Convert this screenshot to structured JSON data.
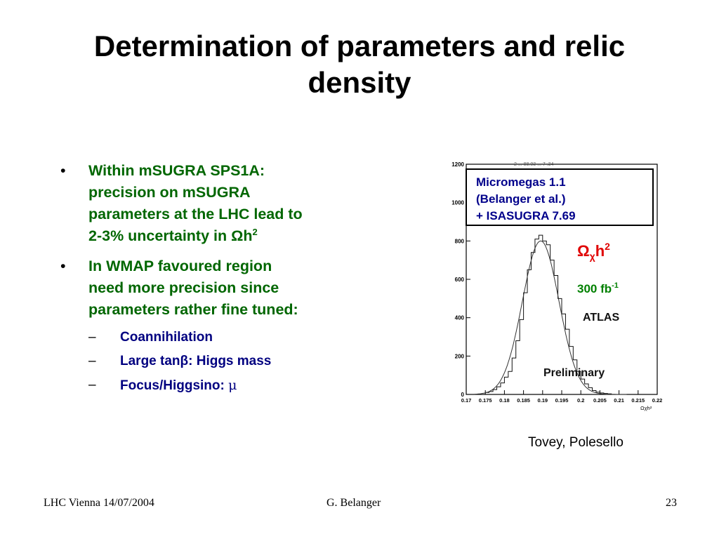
{
  "slide": {
    "title_line1": "Determination of parameters and relic",
    "title_line2": "density"
  },
  "bullets": {
    "b1": {
      "line1": "Within mSUGRA SPS1A:",
      "line2": "precision on mSUGRA",
      "line3": "parameters at the LHC lead to",
      "line4": "2-3% uncertainty in Ωh",
      "sup": "2"
    },
    "b2": {
      "line1": "In WMAP favoured region",
      "line2": "need more precision since",
      "line3": "parameters rather fine tuned:"
    },
    "sub": [
      {
        "text": "Coannihilation"
      },
      {
        "text": "Large tanβ: Higgs mass"
      },
      {
        "text": "Focus/Higgsino: ",
        "symbol": "μ"
      }
    ],
    "bullet_glyph": "•",
    "dash_glyph": "–"
  },
  "credit": "Tovey, Polesello",
  "footer": {
    "left": "LHC Vienna 14/07/2004",
    "center": "G. Belanger",
    "right": "23"
  },
  "chart_data": {
    "type": "bar",
    "legend_box": [
      "Micromegas 1.1",
      "(Belanger et al.)",
      "+ ISASUGRA 7.69"
    ],
    "quantity_label": "Ω",
    "quantity_sub": "χ",
    "quantity_suffix": "h",
    "quantity_sup": "2",
    "luminosity_label": "300 fb",
    "luminosity_sup": "-1",
    "experiment": "ATLAS",
    "status": "Preliminary",
    "xlabel": "Ωχh²",
    "xticks": [
      "0.17",
      "0.175",
      "0.18",
      "0.185",
      "0.19",
      "0.195",
      "0.2",
      "0.205",
      "0.21",
      "0.215",
      "0.22"
    ],
    "yticks": [
      "0",
      "200",
      "400",
      "600",
      "800",
      "1000",
      "1200"
    ],
    "xlim": [
      0.17,
      0.22
    ],
    "ylim": [
      0,
      1200
    ],
    "bin_width": 0.001,
    "histogram": {
      "x": [
        0.175,
        0.176,
        0.177,
        0.178,
        0.179,
        0.18,
        0.181,
        0.182,
        0.183,
        0.184,
        0.185,
        0.186,
        0.187,
        0.188,
        0.189,
        0.19,
        0.191,
        0.192,
        0.193,
        0.194,
        0.195,
        0.196,
        0.197,
        0.198,
        0.199,
        0.2,
        0.201,
        0.202,
        0.203,
        0.204,
        0.205,
        0.206,
        0.207
      ],
      "values": [
        10,
        15,
        25,
        40,
        60,
        90,
        120,
        190,
        280,
        390,
        530,
        650,
        740,
        810,
        830,
        800,
        780,
        700,
        620,
        500,
        420,
        340,
        250,
        180,
        120,
        80,
        55,
        35,
        20,
        12,
        8,
        5,
        3
      ]
    },
    "fit": {
      "type": "gaussian",
      "mean": 0.1895,
      "sigma": 0.0048,
      "peak": 800
    },
    "header_text": "2  ...  88.03  ...  7  .34"
  }
}
